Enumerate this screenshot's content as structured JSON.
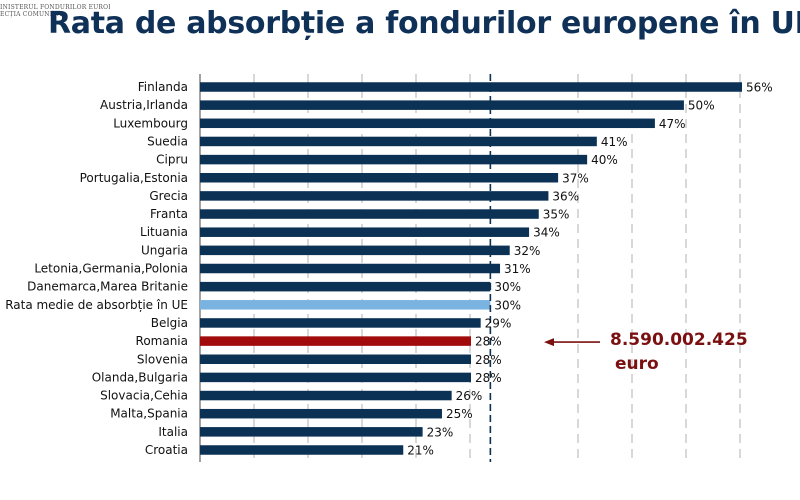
{
  "header": {
    "org_line1": "INISTERUL FONDURILOR EUROPENE",
    "org_line2": "ECȚIA COMUNICA"
  },
  "chart_data": {
    "type": "bar",
    "orientation": "horizontal",
    "title": "Rata de absorbție a fondurilor europene în UE",
    "categories": [
      "Finlanda",
      "Austria,Irlanda",
      "Luxembourg",
      "Suedia",
      "Cipru",
      "Portugalia,Estonia",
      "Grecia",
      "Franta",
      "Lituania",
      "Ungaria",
      "Letonia,Germania,Polonia",
      "Danemarca,Marea Britanie",
      "Rata medie de absorbție în UE",
      "Belgia",
      "Romania",
      "Slovenia",
      "Olanda,Bulgaria",
      "Slovacia,Cehia",
      "Malta,Spania",
      "Italia",
      "Croatia"
    ],
    "values": [
      56,
      50,
      47,
      41,
      40,
      37,
      36,
      35,
      34,
      32,
      31,
      30,
      30,
      29,
      28,
      28,
      28,
      26,
      25,
      23,
      21
    ],
    "value_labels": [
      "56%",
      "50%",
      "47%",
      "41%",
      "40%",
      "37%",
      "36%",
      "35%",
      "34%",
      "32%",
      "31%",
      "30%",
      "30%",
      "29%",
      "28%",
      "28%",
      "28%",
      "26%",
      "25%",
      "23%",
      "21%"
    ],
    "xlim": [
      0,
      56
    ],
    "grid": true,
    "reference_line": 30,
    "colors": {
      "default": "#0b3154",
      "average": "#7ab3e0",
      "highlight": "#a10b0b",
      "grid": "#c8c8c8",
      "reference": "#0b3154"
    },
    "highlight_category": "Romania",
    "average_category": "Rata medie de absorbție în UE",
    "annotation": {
      "amount": "8.590.002.425",
      "unit": "euro",
      "target": "Romania",
      "color": "#7a1010"
    }
  }
}
